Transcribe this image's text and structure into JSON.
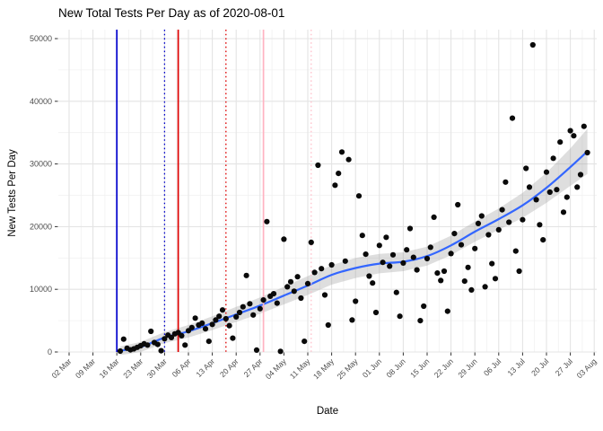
{
  "page": {
    "title": "New Total Tests Per Day as of 2020-08-01"
  },
  "chart_data": {
    "type": "scatter",
    "title": "New Total Tests Per Day as of 2020-08-01",
    "xlabel": "Date",
    "ylabel": "New Tests Per Day",
    "ylim": [
      0,
      50000
    ],
    "y_ticks": [
      0,
      10000,
      20000,
      30000,
      40000,
      50000
    ],
    "y_tick_labels": [
      "0",
      "10000",
      "20000",
      "30000",
      "40000",
      "50000"
    ],
    "y_minor_ticks": [
      5000,
      15000,
      25000,
      35000,
      45000
    ],
    "x_tick_dates": [
      "2020-03-02",
      "2020-03-09",
      "2020-03-16",
      "2020-03-23",
      "2020-03-30",
      "2020-04-06",
      "2020-04-13",
      "2020-04-20",
      "2020-04-27",
      "2020-05-04",
      "2020-05-11",
      "2020-05-18",
      "2020-05-25",
      "2020-06-01",
      "2020-06-08",
      "2020-06-15",
      "2020-06-22",
      "2020-06-29",
      "2020-07-06",
      "2020-07-13",
      "2020-07-20",
      "2020-07-27",
      "2020-08-03"
    ],
    "x_tick_labels": [
      "02 Mar",
      "09 Mar",
      "16 Mar",
      "23 Mar",
      "30 Mar",
      "06 Apr",
      "13 Apr",
      "20 Apr",
      "27 Apr",
      "04 May",
      "11 May",
      "18 May",
      "25 May",
      "01 Jun",
      "08 Jun",
      "15 Jun",
      "22 Jun",
      "29 Jun",
      "06 Jul",
      "13 Jul",
      "20 Jul",
      "27 Jul",
      "03 Aug"
    ],
    "grid": "major-and-minor",
    "legend": "none",
    "colors": {
      "point": "#0a0a0a",
      "smooth_line": "#3366FF",
      "ribbon": "#999999",
      "ribbon_opacity": 0.32,
      "major_grid": "#e4e4e4",
      "minor_grid": "#f1f1f1",
      "axis_text": "#4d4d4d",
      "tick_mark": "#333333"
    },
    "vlines": [
      {
        "date": "2020-03-16",
        "style": "solid",
        "color": "#0000cc"
      },
      {
        "date": "2020-03-30",
        "style": "dotted",
        "color": "#0000cc"
      },
      {
        "date": "2020-04-03",
        "style": "solid",
        "color": "#dd0000"
      },
      {
        "date": "2020-04-17",
        "style": "dotted",
        "color": "#dd0000"
      },
      {
        "date": "2020-04-28",
        "style": "solid",
        "color": "#ffb3c1"
      },
      {
        "date": "2020-05-12",
        "style": "dotted",
        "color": "#ffc0cb"
      }
    ],
    "smooth_line": {
      "dates": [
        "2020-03-17",
        "2020-03-23",
        "2020-03-30",
        "2020-04-06",
        "2020-04-13",
        "2020-04-20",
        "2020-04-27",
        "2020-05-04",
        "2020-05-11",
        "2020-05-18",
        "2020-05-25",
        "2020-06-01",
        "2020-06-08",
        "2020-06-15",
        "2020-06-22",
        "2020-06-29",
        "2020-07-06",
        "2020-07-13",
        "2020-07-20",
        "2020-07-27",
        "2020-08-01"
      ],
      "values": [
        200,
        800,
        2300,
        3300,
        4600,
        6000,
        7400,
        9000,
        10600,
        12300,
        13400,
        14100,
        14400,
        15300,
        17000,
        19200,
        21200,
        23400,
        26200,
        29500,
        32000
      ],
      "ci_halfwidth": [
        700,
        800,
        900,
        1000,
        1100,
        1200,
        1300,
        1400,
        1500,
        1550,
        1600,
        1550,
        1500,
        1500,
        1550,
        1600,
        1700,
        2000,
        2400,
        3000,
        3600
      ]
    },
    "points": [
      [
        "2020-03-17",
        150
      ],
      [
        "2020-03-18",
        2050
      ],
      [
        "2020-03-19",
        600
      ],
      [
        "2020-03-20",
        350
      ],
      [
        "2020-03-21",
        500
      ],
      [
        "2020-03-22",
        750
      ],
      [
        "2020-03-23",
        1000
      ],
      [
        "2020-03-24",
        1300
      ],
      [
        "2020-03-25",
        1100
      ],
      [
        "2020-03-26",
        3300
      ],
      [
        "2020-03-27",
        1500
      ],
      [
        "2020-03-28",
        1200
      ],
      [
        "2020-03-29",
        200
      ],
      [
        "2020-03-30",
        2100
      ],
      [
        "2020-03-31",
        2700
      ],
      [
        "2020-04-01",
        2300
      ],
      [
        "2020-04-02",
        2900
      ],
      [
        "2020-04-03",
        3100
      ],
      [
        "2020-04-04",
        2600
      ],
      [
        "2020-04-05",
        1100
      ],
      [
        "2020-04-06",
        3400
      ],
      [
        "2020-04-07",
        3900
      ],
      [
        "2020-04-08",
        5400
      ],
      [
        "2020-04-09",
        4300
      ],
      [
        "2020-04-10",
        4600
      ],
      [
        "2020-04-11",
        3700
      ],
      [
        "2020-04-12",
        1700
      ],
      [
        "2020-04-13",
        4400
      ],
      [
        "2020-04-14",
        5100
      ],
      [
        "2020-04-15",
        5700
      ],
      [
        "2020-04-16",
        6700
      ],
      [
        "2020-04-17",
        5300
      ],
      [
        "2020-04-18",
        4200
      ],
      [
        "2020-04-19",
        2200
      ],
      [
        "2020-04-20",
        5600
      ],
      [
        "2020-04-21",
        6300
      ],
      [
        "2020-04-22",
        7200
      ],
      [
        "2020-04-23",
        12200
      ],
      [
        "2020-04-24",
        7700
      ],
      [
        "2020-04-25",
        5900
      ],
      [
        "2020-04-26",
        300
      ],
      [
        "2020-04-27",
        6900
      ],
      [
        "2020-04-28",
        8300
      ],
      [
        "2020-04-29",
        20800
      ],
      [
        "2020-04-30",
        8900
      ],
      [
        "2020-05-01",
        9300
      ],
      [
        "2020-05-02",
        7800
      ],
      [
        "2020-05-03",
        100
      ],
      [
        "2020-05-04",
        18000
      ],
      [
        "2020-05-05",
        10400
      ],
      [
        "2020-05-06",
        11200
      ],
      [
        "2020-05-07",
        9700
      ],
      [
        "2020-05-08",
        12000
      ],
      [
        "2020-05-09",
        8600
      ],
      [
        "2020-05-10",
        1700
      ],
      [
        "2020-05-11",
        10900
      ],
      [
        "2020-05-12",
        17500
      ],
      [
        "2020-05-13",
        12700
      ],
      [
        "2020-05-14",
        29800
      ],
      [
        "2020-05-15",
        13300
      ],
      [
        "2020-05-16",
        9100
      ],
      [
        "2020-05-17",
        4300
      ],
      [
        "2020-05-18",
        13900
      ],
      [
        "2020-05-19",
        26600
      ],
      [
        "2020-05-20",
        28500
      ],
      [
        "2020-05-21",
        31900
      ],
      [
        "2020-05-22",
        14500
      ],
      [
        "2020-05-23",
        30700
      ],
      [
        "2020-05-24",
        5100
      ],
      [
        "2020-05-25",
        8100
      ],
      [
        "2020-05-26",
        24900
      ],
      [
        "2020-05-27",
        18600
      ],
      [
        "2020-05-28",
        15600
      ],
      [
        "2020-05-29",
        12100
      ],
      [
        "2020-05-30",
        11000
      ],
      [
        "2020-05-31",
        6300
      ],
      [
        "2020-06-01",
        17000
      ],
      [
        "2020-06-02",
        14300
      ],
      [
        "2020-06-03",
        18300
      ],
      [
        "2020-06-04",
        13700
      ],
      [
        "2020-06-05",
        15500
      ],
      [
        "2020-06-06",
        9500
      ],
      [
        "2020-06-07",
        5700
      ],
      [
        "2020-06-08",
        14200
      ],
      [
        "2020-06-09",
        16300
      ],
      [
        "2020-06-10",
        19700
      ],
      [
        "2020-06-11",
        15100
      ],
      [
        "2020-06-12",
        13100
      ],
      [
        "2020-06-13",
        5000
      ],
      [
        "2020-06-14",
        7300
      ],
      [
        "2020-06-15",
        14900
      ],
      [
        "2020-06-16",
        16700
      ],
      [
        "2020-06-17",
        21500
      ],
      [
        "2020-06-18",
        12600
      ],
      [
        "2020-06-19",
        11400
      ],
      [
        "2020-06-20",
        12900
      ],
      [
        "2020-06-21",
        6500
      ],
      [
        "2020-06-22",
        15700
      ],
      [
        "2020-06-23",
        18900
      ],
      [
        "2020-06-24",
        23500
      ],
      [
        "2020-06-25",
        17100
      ],
      [
        "2020-06-26",
        11300
      ],
      [
        "2020-06-27",
        13500
      ],
      [
        "2020-06-28",
        9900
      ],
      [
        "2020-06-29",
        16500
      ],
      [
        "2020-06-30",
        20500
      ],
      [
        "2020-07-01",
        21700
      ],
      [
        "2020-07-02",
        10400
      ],
      [
        "2020-07-03",
        18700
      ],
      [
        "2020-07-04",
        14100
      ],
      [
        "2020-07-05",
        11700
      ],
      [
        "2020-07-06",
        19500
      ],
      [
        "2020-07-07",
        22700
      ],
      [
        "2020-07-08",
        27100
      ],
      [
        "2020-07-09",
        20700
      ],
      [
        "2020-07-10",
        37300
      ],
      [
        "2020-07-11",
        16100
      ],
      [
        "2020-07-12",
        12900
      ],
      [
        "2020-07-13",
        21100
      ],
      [
        "2020-07-14",
        29300
      ],
      [
        "2020-07-15",
        26300
      ],
      [
        "2020-07-16",
        49000
      ],
      [
        "2020-07-17",
        24300
      ],
      [
        "2020-07-18",
        20300
      ],
      [
        "2020-07-19",
        17900
      ],
      [
        "2020-07-20",
        28700
      ],
      [
        "2020-07-21",
        25500
      ],
      [
        "2020-07-22",
        30900
      ],
      [
        "2020-07-23",
        25900
      ],
      [
        "2020-07-24",
        33500
      ],
      [
        "2020-07-25",
        22300
      ],
      [
        "2020-07-26",
        24700
      ],
      [
        "2020-07-27",
        35300
      ],
      [
        "2020-07-28",
        34500
      ],
      [
        "2020-07-29",
        26300
      ],
      [
        "2020-07-30",
        28300
      ],
      [
        "2020-07-31",
        36000
      ],
      [
        "2020-08-01",
        31800
      ]
    ]
  }
}
